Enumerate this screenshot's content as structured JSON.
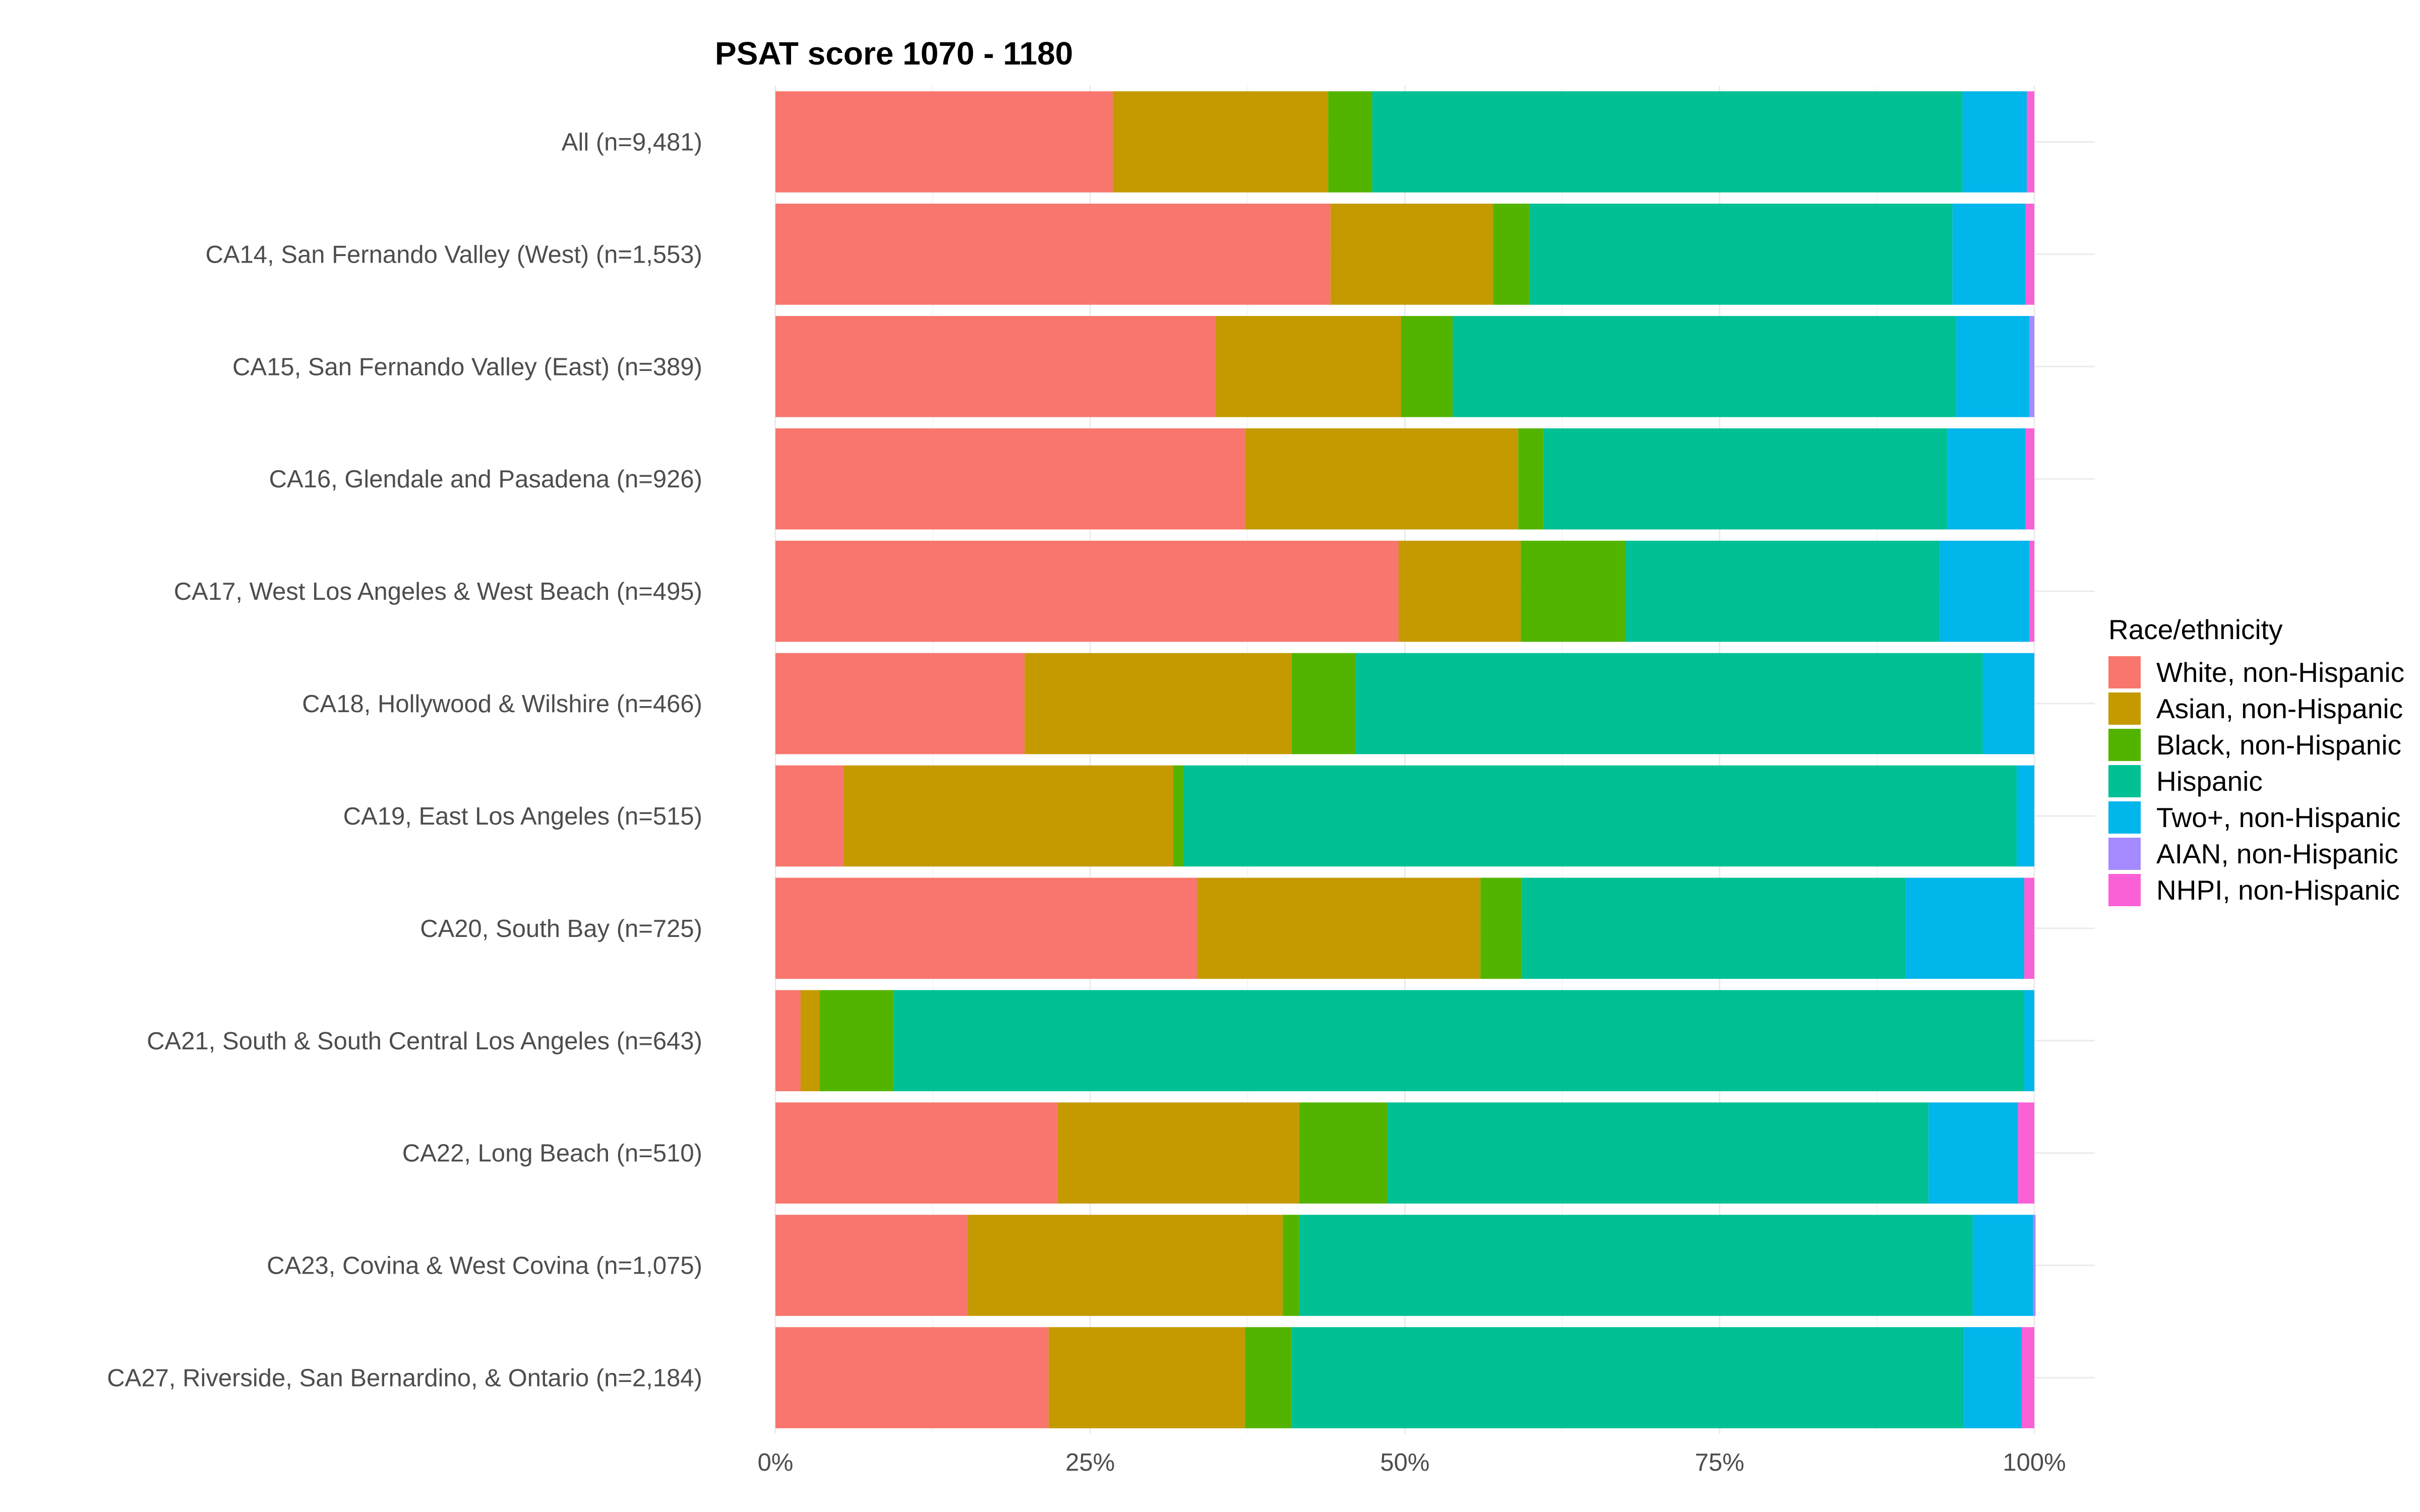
{
  "chart_data": {
    "type": "bar",
    "orientation": "horizontal",
    "stacked": true,
    "normalized": true,
    "title": "PSAT score 1070 - 1180",
    "xlabel": "",
    "ylabel": "",
    "xlim": [
      0,
      1
    ],
    "x_ticks": [
      {
        "value": 0,
        "label": "0%"
      },
      {
        "value": 0.25,
        "label": "25%"
      },
      {
        "value": 0.5,
        "label": "50%"
      },
      {
        "value": 0.75,
        "label": "75%"
      },
      {
        "value": 1,
        "label": "100%"
      }
    ],
    "grid": true,
    "legend": {
      "title": "Race/ethnicity",
      "position": "right"
    },
    "categories": [
      "All (n=9,481)",
      "CA14, San Fernando Valley (West) (n=1,553)",
      "CA15, San Fernando Valley (East) (n=389)",
      "CA16, Glendale and Pasadena (n=926)",
      "CA17, West Los Angeles & West Beach (n=495)",
      "CA18, Hollywood & Wilshire (n=466)",
      "CA19, East Los Angeles (n=515)",
      "CA20, South Bay (n=725)",
      "CA21, South & South Central Los Angeles (n=643)",
      "CA22, Long Beach (n=510)",
      "CA23, Covina & West Covina (n=1,075)",
      "CA27, Riverside, San Bernardino, & Ontario (n=2,184)"
    ],
    "series": [
      {
        "name": "White, non-Hispanic",
        "color": "#F8766D",
        "values": [
          0.268,
          0.441,
          0.35,
          0.373,
          0.495,
          0.198,
          0.054,
          0.335,
          0.02,
          0.224,
          0.153,
          0.217
        ]
      },
      {
        "name": "Asian, non-Hispanic",
        "color": "#C49A00",
        "values": [
          0.171,
          0.129,
          0.147,
          0.217,
          0.097,
          0.212,
          0.262,
          0.225,
          0.015,
          0.192,
          0.25,
          0.156
        ]
      },
      {
        "name": "Black, non-Hispanic",
        "color": "#53B400",
        "values": [
          0.035,
          0.029,
          0.041,
          0.02,
          0.083,
          0.051,
          0.008,
          0.033,
          0.059,
          0.07,
          0.013,
          0.037
        ]
      },
      {
        "name": "Hispanic",
        "color": "#00C094",
        "values": [
          0.469,
          0.336,
          0.4,
          0.321,
          0.25,
          0.498,
          0.662,
          0.305,
          0.898,
          0.43,
          0.535,
          0.534
        ]
      },
      {
        "name": "Two+, non-Hispanic",
        "color": "#00B6EB",
        "values": [
          0.051,
          0.058,
          0.058,
          0.062,
          0.071,
          0.041,
          0.014,
          0.094,
          0.008,
          0.071,
          0.048,
          0.046
        ]
      },
      {
        "name": "AIAN, non-Hispanic",
        "color": "#A58AFF",
        "values": [
          0.0,
          0.0,
          0.004,
          0.0,
          0.0,
          0.0,
          0.0,
          0.0,
          0.0,
          0.0,
          0.002,
          0.0
        ]
      },
      {
        "name": "NHPI, non-Hispanic",
        "color": "#FB61D7",
        "values": [
          0.006,
          0.007,
          0.0,
          0.007,
          0.004,
          0.0,
          0.0,
          0.008,
          0.0,
          0.013,
          0.0,
          0.01
        ]
      }
    ]
  }
}
